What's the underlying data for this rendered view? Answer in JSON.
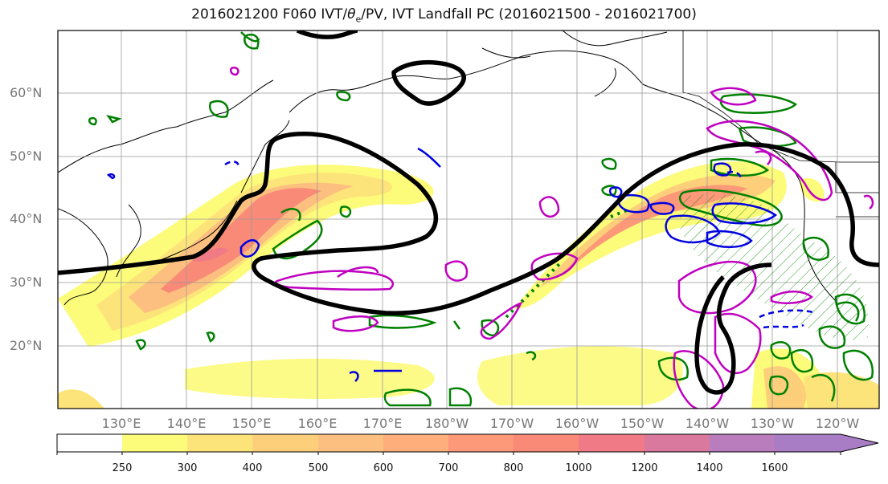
{
  "title": {
    "prefix": "2016021200 F060 IVT/",
    "theta": "θ",
    "theta_sub": "e",
    "suffix": "/PV, IVT Landfall PC (2016021500 - 2016021700)"
  },
  "axes": {
    "lat_labels": [
      "60°N",
      "50°N",
      "40°N",
      "30°N",
      "20°N"
    ],
    "lon_labels": [
      "130°E",
      "140°E",
      "150°E",
      "160°E",
      "170°E",
      "180°W",
      "170°W",
      "160°W",
      "150°W",
      "140°W",
      "130°W",
      "120°W"
    ]
  },
  "colorbar": {
    "labels": [
      "250",
      "300",
      "400",
      "500",
      "600",
      "700",
      "800",
      "1000",
      "1200",
      "1400",
      "1600"
    ],
    "colors": [
      "#ffffff",
      "#fdfb7a",
      "#fde47a",
      "#fdcf7a",
      "#fdbf7f",
      "#fdae7a",
      "#fd9878",
      "#f98a78",
      "#f07b86",
      "#d9799e",
      "#b97dbe",
      "#a87dc6"
    ]
  },
  "legend_colors": {
    "ivt_contour": "#000000",
    "theta_e": "#008000",
    "pv_pos": "#0000e0",
    "pv_neg": "#c000c0"
  }
}
